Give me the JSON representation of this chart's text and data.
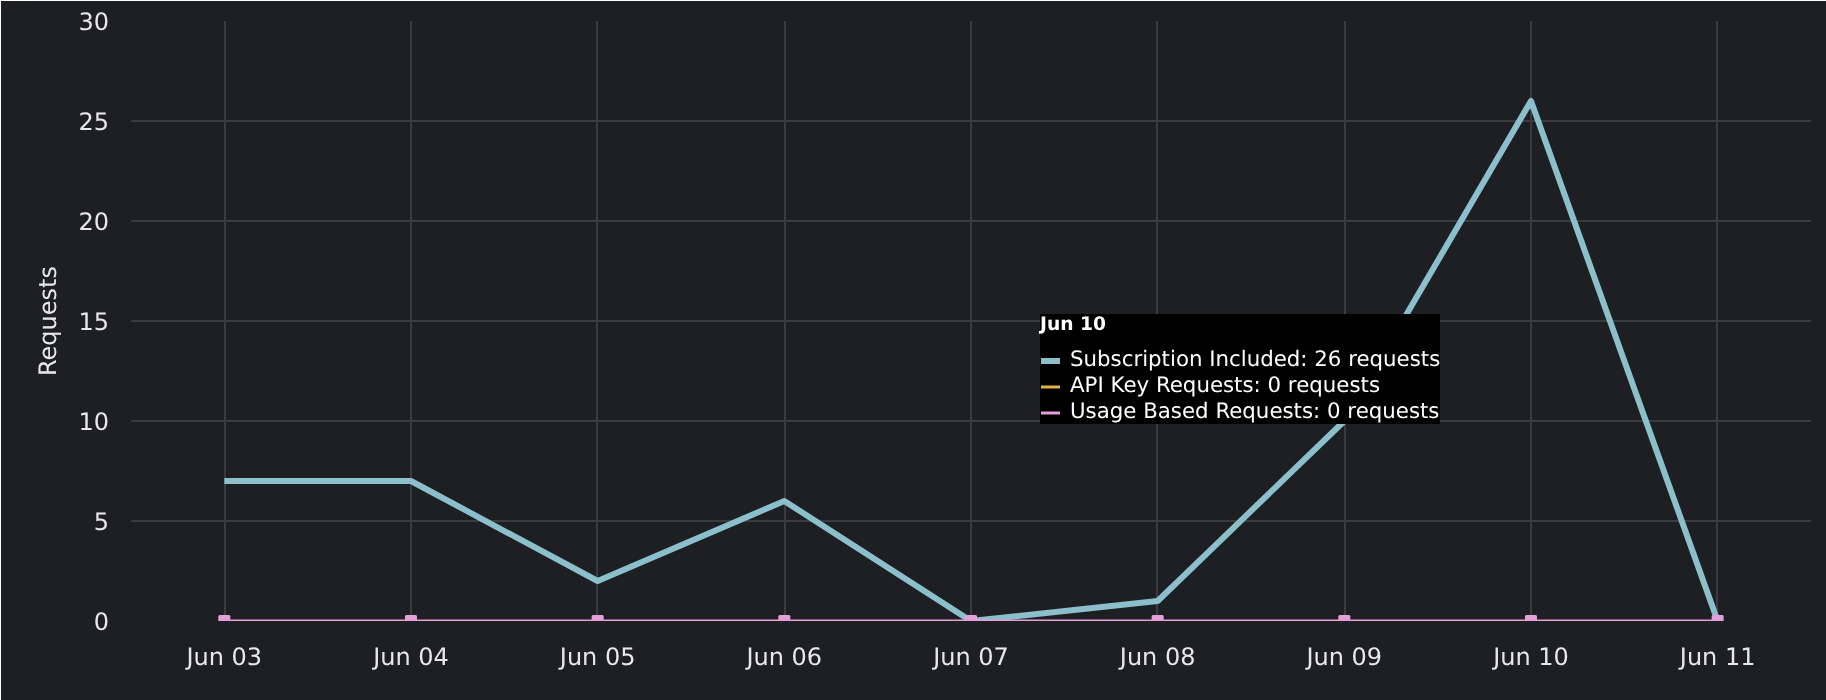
{
  "chart_data": {
    "type": "line",
    "ylabel": "Requests",
    "categories": [
      "Jun 03",
      "Jun 04",
      "Jun 05",
      "Jun 06",
      "Jun 07",
      "Jun 08",
      "Jun 09",
      "Jun 10",
      "Jun 11"
    ],
    "series": [
      {
        "color": "#8bbfcc",
        "marker": "none",
        "values": [
          7,
          7,
          2,
          6,
          0,
          1,
          10,
          26,
          0
        ]
      },
      {
        "color": "#e3b341",
        "marker": "none",
        "values": [
          null,
          null,
          null,
          null,
          null,
          null,
          null,
          null,
          null
        ]
      },
      {
        "color": "#e59fd8",
        "marker": "square",
        "values": [
          0,
          0,
          0,
          0,
          0,
          0,
          0,
          0,
          0
        ]
      }
    ],
    "ylim": [
      0,
      30
    ],
    "yticks": [
      0,
      5,
      10,
      15,
      20,
      25,
      30
    ],
    "grid": true,
    "annotations": [
      "Jun 10",
      "Subscription Included: 26 requests",
      "API Key Requests: 0 requests",
      "Usage Based Requests: 0 requests"
    ]
  }
}
